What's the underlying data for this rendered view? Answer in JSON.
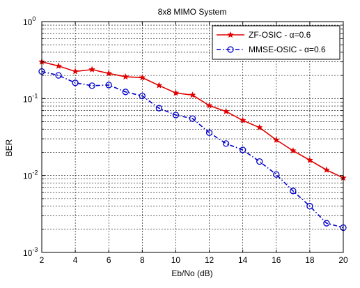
{
  "chart_data": {
    "type": "line",
    "title": "8x8 MIMO System",
    "xlabel": "Eb/No (dB)",
    "ylabel": "BER",
    "x": [
      2,
      3,
      4,
      5,
      6,
      7,
      8,
      9,
      10,
      11,
      12,
      13,
      14,
      15,
      16,
      17,
      18,
      19,
      20
    ],
    "xlim": [
      2,
      20
    ],
    "ylim": [
      0.001,
      1
    ],
    "yscale": "log",
    "xticks": [
      2,
      4,
      6,
      8,
      10,
      12,
      14,
      16,
      18,
      20
    ],
    "yticks": [
      {
        "value": 1,
        "base": "10",
        "exp": "0"
      },
      {
        "value": 0.1,
        "base": "10",
        "exp": "-1"
      },
      {
        "value": 0.01,
        "base": "10",
        "exp": "-2"
      },
      {
        "value": 0.001,
        "base": "10",
        "exp": "-3"
      }
    ],
    "grid": true,
    "legend_position": "top-right",
    "series": [
      {
        "name": "ZF-OSIC - α=0.6",
        "color": "#e00000",
        "line_style": "solid",
        "marker": "star",
        "values": [
          0.3,
          0.265,
          0.225,
          0.238,
          0.212,
          0.192,
          0.187,
          0.148,
          0.118,
          0.111,
          0.081,
          0.068,
          0.052,
          0.042,
          0.029,
          0.021,
          0.0158,
          0.0118,
          0.0093
        ]
      },
      {
        "name": "MMSE-OSIC - α=0.6",
        "color": "#0000cc",
        "line_style": "dash-dot",
        "marker": "circle",
        "values": [
          0.225,
          0.2,
          0.16,
          0.147,
          0.15,
          0.122,
          0.108,
          0.075,
          0.061,
          0.055,
          0.036,
          0.026,
          0.0215,
          0.0152,
          0.0103,
          0.0063,
          0.004,
          0.0024,
          0.0021
        ]
      }
    ]
  }
}
